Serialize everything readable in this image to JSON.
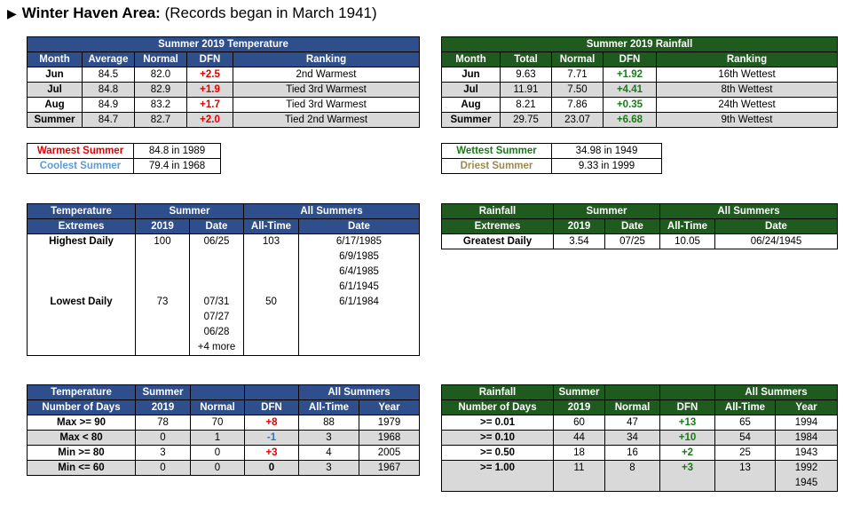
{
  "title": {
    "bold": "Winter Haven Area:",
    "rest": "(Records began in March 1941)"
  },
  "temp_summary": {
    "caption": "Summer 2019 Temperature",
    "headers": [
      "Month",
      "Average",
      "Normal",
      "DFN",
      "Ranking"
    ],
    "rows": [
      {
        "month": "Jun",
        "avg": "84.5",
        "normal": "82.0",
        "dfn": "+2.5",
        "rank": "2nd Warmest"
      },
      {
        "month": "Jul",
        "avg": "84.8",
        "normal": "82.9",
        "dfn": "+1.9",
        "rank": "Tied 3rd Warmest"
      },
      {
        "month": "Aug",
        "avg": "84.9",
        "normal": "83.2",
        "dfn": "+1.7",
        "rank": "Tied 3rd Warmest"
      },
      {
        "month": "Summer",
        "avg": "84.7",
        "normal": "82.7",
        "dfn": "+2.0",
        "rank": "Tied 2nd Warmest"
      }
    ]
  },
  "rain_summary": {
    "caption": "Summer 2019 Rainfall",
    "headers": [
      "Month",
      "Total",
      "Normal",
      "DFN",
      "Ranking"
    ],
    "rows": [
      {
        "month": "Jun",
        "total": "9.63",
        "normal": "7.71",
        "dfn": "+1.92",
        "rank": "16th Wettest"
      },
      {
        "month": "Jul",
        "total": "11.91",
        "normal": "7.50",
        "dfn": "+4.41",
        "rank": "8th Wettest"
      },
      {
        "month": "Aug",
        "total": "8.21",
        "normal": "7.86",
        "dfn": "+0.35",
        "rank": "24th Wettest"
      },
      {
        "month": "Summer",
        "total": "29.75",
        "normal": "23.07",
        "dfn": "+6.68",
        "rank": "9th Wettest"
      }
    ]
  },
  "temp_records": {
    "warmest_label": "Warmest Summer",
    "warmest_value": "84.8 in 1989",
    "coolest_label": "Coolest Summer",
    "coolest_value": "79.4 in 1968"
  },
  "rain_records": {
    "wettest_label": "Wettest Summer",
    "wettest_value": "34.98 in 1949",
    "driest_label": "Driest Summer",
    "driest_value": "9.33 in 1999"
  },
  "temp_extremes": {
    "h1": "Temperature",
    "h1b": "Extremes",
    "h_summer": "Summer",
    "h_all": "All Summers",
    "h_2019": "2019",
    "h_date": "Date",
    "h_alltime": "All-Time",
    "h_date2": "Date",
    "high_label": "Highest Daily",
    "high_2019": "100",
    "high_date": "06/25",
    "high_alltime": "103",
    "high_dates": [
      "6/17/1985",
      "6/9/1985",
      "6/4/1985",
      "6/1/1945"
    ],
    "low_label": "Lowest Daily",
    "low_2019": "73",
    "low_dates_2019": [
      "07/31",
      "07/27",
      "06/28",
      "+4 more"
    ],
    "low_alltime": "50",
    "low_date": "6/1/1984"
  },
  "rain_extremes": {
    "h1": "Rainfall",
    "h1b": "Extremes",
    "h_summer": "Summer",
    "h_all": "All Summers",
    "h_2019": "2019",
    "h_date": "Date",
    "h_alltime": "All-Time",
    "h_date2": "Date",
    "label": "Greatest Daily",
    "v2019": "3.54",
    "date": "07/25",
    "alltime": "10.05",
    "alldate": "06/24/1945"
  },
  "temp_days": {
    "h1": "Temperature",
    "h1b": "Number of Days",
    "h_summer": "Summer",
    "h_2019": "2019",
    "h_normal": "Normal",
    "h_dfn": "DFN",
    "h_all": "All Summers",
    "h_alltime": "All-Time",
    "h_year": "Year",
    "rows": [
      {
        "label": "Max >= 90",
        "v": "78",
        "n": "70",
        "dfn": "+8",
        "at": "88",
        "yr": "1979"
      },
      {
        "label": "Max < 80",
        "v": "0",
        "n": "1",
        "dfn": "-1",
        "at": "3",
        "yr": "1968"
      },
      {
        "label": "Min >= 80",
        "v": "3",
        "n": "0",
        "dfn": "+3",
        "at": "4",
        "yr": "2005"
      },
      {
        "label": "Min <= 60",
        "v": "0",
        "n": "0",
        "dfn": "0",
        "at": "3",
        "yr": "1967"
      }
    ]
  },
  "rain_days": {
    "h1": "Rainfall",
    "h1b": "Number of Days",
    "h_summer": "Summer",
    "h_2019": "2019",
    "h_normal": "Normal",
    "h_dfn": "DFN",
    "h_all": "All Summers",
    "h_alltime": "All-Time",
    "h_year": "Year",
    "rows": [
      {
        "label": ">= 0.01",
        "v": "60",
        "n": "47",
        "dfn": "+13",
        "at": "65",
        "yr": "1994"
      },
      {
        "label": ">= 0.10",
        "v": "44",
        "n": "34",
        "dfn": "+10",
        "at": "54",
        "yr": "1984"
      },
      {
        "label": ">= 0.50",
        "v": "18",
        "n": "16",
        "dfn": "+2",
        "at": "25",
        "yr": "1943"
      },
      {
        "label": ">= 1.00",
        "v": "11",
        "n": "8",
        "dfn": "+3",
        "at": "13",
        "yr": "1992",
        "yr2": "1945"
      }
    ]
  }
}
